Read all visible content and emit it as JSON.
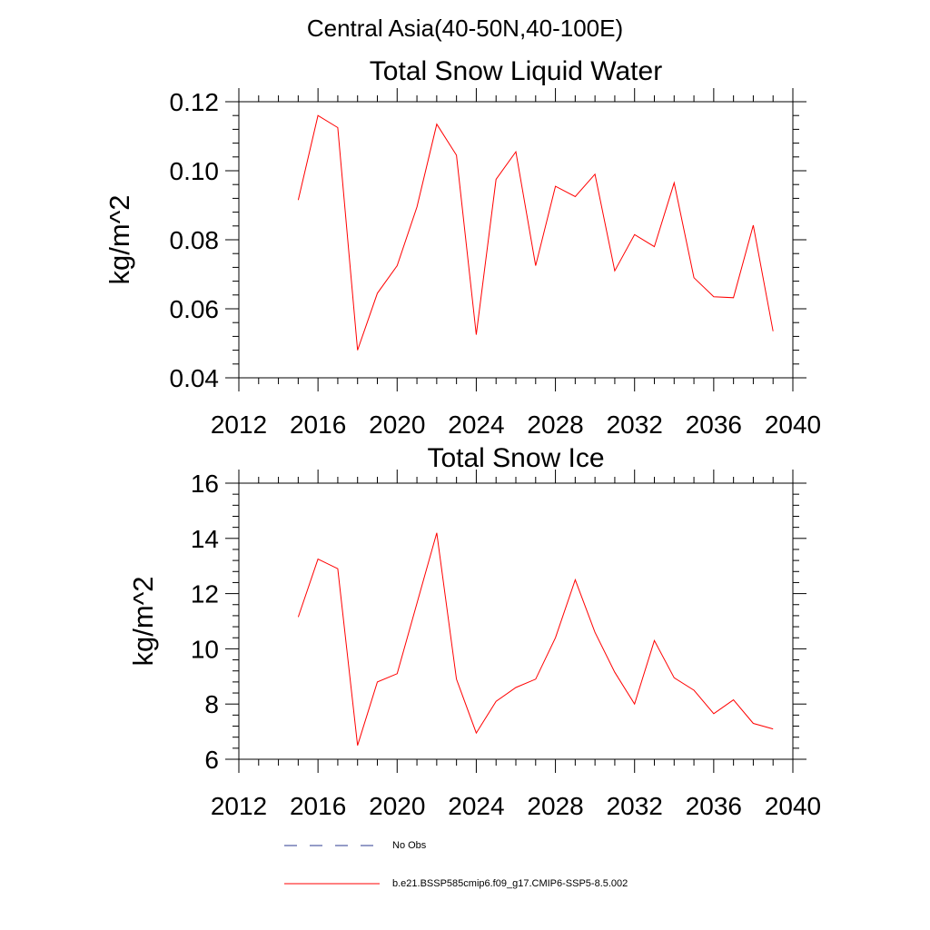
{
  "page": {
    "title": "Central Asia(40-50N,40-100E)"
  },
  "colors": {
    "series": "#ff0000",
    "obs": "#2b3a8f",
    "axis": "#000000"
  },
  "chart_data": [
    {
      "type": "line",
      "title": "Total Snow Liquid Water",
      "xlabel": "",
      "ylabel": "kg/m^2",
      "xlim": [
        2012,
        2040
      ],
      "ylim": [
        0.04,
        0.12
      ],
      "xticks": [
        2012,
        2016,
        2020,
        2024,
        2028,
        2032,
        2036,
        2040
      ],
      "xtick_labels": [
        "2012",
        "2016",
        "2020",
        "2024",
        "2028",
        "2032",
        "2036",
        "2040"
      ],
      "yticks": [
        0.04,
        0.06,
        0.08,
        0.1,
        0.12
      ],
      "ytick_labels": [
        "0.04",
        "0.06",
        "0.08",
        "0.10",
        "0.12"
      ],
      "grid": false,
      "series": [
        {
          "name": "b.e21.BSSP585cmip6.f09_g17.CMIP6-SSP5-8.5.002",
          "x": [
            2015,
            2016,
            2017,
            2018,
            2019,
            2020,
            2021,
            2022,
            2023,
            2024,
            2025,
            2026,
            2027,
            2028,
            2029,
            2030,
            2031,
            2032,
            2033,
            2034,
            2035,
            2036,
            2037,
            2038,
            2039
          ],
          "y": [
            0.0915,
            0.116,
            0.1125,
            0.048,
            0.0645,
            0.0725,
            0.0895,
            0.1135,
            0.1045,
            0.0525,
            0.0975,
            0.1055,
            0.0725,
            0.0955,
            0.0925,
            0.099,
            0.071,
            0.0815,
            0.078,
            0.0965,
            0.069,
            0.0635,
            0.0632,
            0.0842,
            0.0535
          ]
        }
      ]
    },
    {
      "type": "line",
      "title": "Total Snow Ice",
      "xlabel": "",
      "ylabel": "kg/m^2",
      "xlim": [
        2012,
        2040
      ],
      "ylim": [
        6,
        16
      ],
      "xticks": [
        2012,
        2016,
        2020,
        2024,
        2028,
        2032,
        2036,
        2040
      ],
      "xtick_labels": [
        "2012",
        "2016",
        "2020",
        "2024",
        "2028",
        "2032",
        "2036",
        "2040"
      ],
      "yticks": [
        6,
        8,
        10,
        12,
        14,
        16
      ],
      "ytick_labels": [
        "6",
        "8",
        "10",
        "12",
        "14",
        "16"
      ],
      "grid": false,
      "series": [
        {
          "name": "b.e21.BSSP585cmip6.f09_g17.CMIP6-SSP5-8.5.002",
          "x": [
            2015,
            2016,
            2017,
            2018,
            2019,
            2020,
            2021,
            2022,
            2023,
            2024,
            2025,
            2026,
            2027,
            2028,
            2029,
            2030,
            2031,
            2032,
            2033,
            2034,
            2035,
            2036,
            2037,
            2038,
            2039
          ],
          "y": [
            11.15,
            13.25,
            12.9,
            6.5,
            8.8,
            9.1,
            11.65,
            14.2,
            8.9,
            6.95,
            8.1,
            8.6,
            8.9,
            10.4,
            12.5,
            10.6,
            9.15,
            8.0,
            10.3,
            8.95,
            8.5,
            7.65,
            8.15,
            7.3,
            7.1
          ]
        }
      ]
    }
  ],
  "legend": {
    "items": [
      {
        "label": "No Obs",
        "style": "dashed"
      },
      {
        "label": "b.e21.BSSP585cmip6.f09_g17.CMIP6-SSP5-8.5.002",
        "style": "solid"
      }
    ]
  }
}
